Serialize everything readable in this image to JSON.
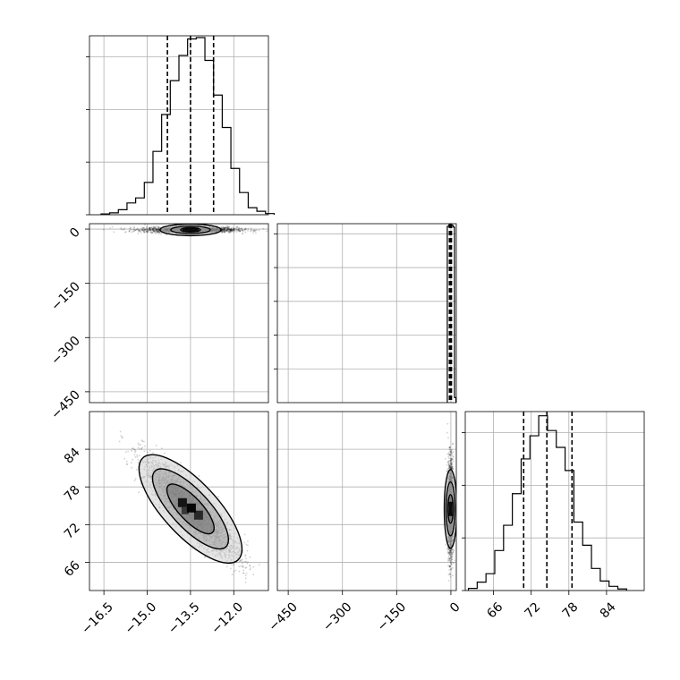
{
  "chart_data": [
    {
      "panel": "hist-param-0",
      "type": "bar",
      "xlim": [
        -17.0,
        -10.8
      ],
      "ylim": [
        0,
        1700
      ],
      "grid": true,
      "quantiles": [
        -14.3,
        -13.5,
        -12.7
      ],
      "bins": [
        -16.6,
        -16.3,
        -16.0,
        -15.7,
        -15.4,
        -15.1,
        -14.8,
        -14.5,
        -14.2,
        -13.9,
        -13.6,
        -13.3,
        -13.0,
        -12.7,
        -12.4,
        -12.1,
        -11.8,
        -11.5,
        -11.2,
        -10.9
      ],
      "values": [
        8,
        18,
        48,
        112,
        160,
        307,
        602,
        952,
        1274,
        1513,
        1670,
        1683,
        1466,
        1137,
        829,
        440,
        211,
        67,
        33,
        11
      ]
    },
    {
      "panel": "scatter-param-0-vs-param-1",
      "type": "scatter",
      "xlim": [
        -17.0,
        -10.8
      ],
      "ylim": [
        -480,
        15
      ],
      "grid": true,
      "center": [
        -13.5,
        -2
      ],
      "spread": [
        0.8,
        4
      ],
      "contours": true
    },
    {
      "panel": "hist-param-1",
      "type": "bar",
      "xlim": [
        -480,
        15
      ],
      "ylim": [
        0,
        5300
      ],
      "grid": true,
      "quantiles": [
        -4,
        -1,
        1.5
      ],
      "bins": [
        -10,
        -6,
        -2,
        2,
        6,
        10
      ],
      "values": [
        5220,
        5250,
        5250,
        5250,
        5200,
        150
      ]
    },
    {
      "panel": "scatter-param-0-vs-param-2",
      "type": "scatter",
      "xlim": [
        -17.0,
        -10.8
      ],
      "ylim": [
        61.5,
        90
      ],
      "grid": true,
      "center": [
        -13.5,
        74.5
      ],
      "spread": [
        0.8,
        3.8
      ],
      "correlation": -0.88,
      "contours": true
    },
    {
      "panel": "scatter-param-1-vs-param-2",
      "type": "scatter",
      "xlim": [
        -480,
        15
      ],
      "ylim": [
        61.5,
        90
      ],
      "grid": true,
      "center": [
        -1,
        74.5
      ],
      "spread": [
        4,
        3.8
      ],
      "contours": true
    },
    {
      "panel": "hist-param-2",
      "type": "bar",
      "xlim": [
        61.5,
        90
      ],
      "ylim": [
        0,
        1700
      ],
      "grid": true,
      "quantiles": [
        70.8,
        74.5,
        78.5
      ],
      "bins": [
        62,
        63.4,
        64.8,
        66.2,
        67.6,
        69.0,
        70.4,
        71.8,
        73.2,
        74.6,
        76.0,
        77.4,
        78.8,
        80.2,
        81.6,
        83.0,
        84.4,
        85.8
      ],
      "values": [
        20,
        80,
        160,
        380,
        620,
        920,
        1250,
        1470,
        1660,
        1520,
        1360,
        1140,
        650,
        430,
        210,
        90,
        40,
        15
      ]
    }
  ],
  "axes": {
    "col0_ticks": [
      "−16.5",
      "−15.0",
      "−13.5",
      "−12.0"
    ],
    "col1_ticks": [
      "−450",
      "−300",
      "−150",
      "0"
    ],
    "col2_ticks": [
      "66",
      "72",
      "78",
      "84"
    ],
    "row1_ticks": [
      "0",
      "−150",
      "−300",
      "−450"
    ],
    "row2_ticks": [
      "84",
      "78",
      "72",
      "66"
    ]
  }
}
